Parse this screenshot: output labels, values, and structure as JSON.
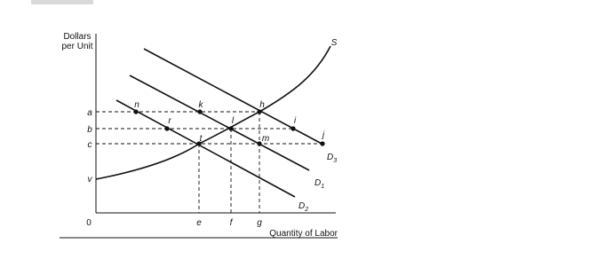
{
  "axes": {
    "y_label": [
      "Dollars",
      "per Unit"
    ],
    "x_label": "Quantity of Labor",
    "origin": "0"
  },
  "y_levels": [
    "a",
    "b",
    "c",
    "v"
  ],
  "x_levels": [
    "e",
    "f",
    "g"
  ],
  "curves": [
    {
      "label": "S"
    },
    {
      "label": "D",
      "subscript": "3"
    },
    {
      "label": "D",
      "subscript": "1"
    },
    {
      "label": "D",
      "subscript": "2"
    }
  ],
  "points": [
    "n",
    "k",
    "h",
    "r",
    "l",
    "i",
    "j",
    "t",
    "m"
  ]
}
